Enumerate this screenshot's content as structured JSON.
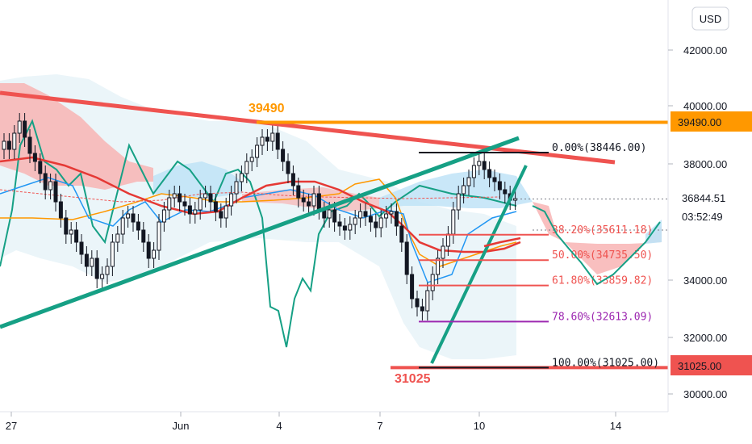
{
  "currency_badge": "USD",
  "colors": {
    "up": "#ffffff",
    "down": "#131722",
    "trend_red": "#ef5350",
    "trend_green": "#16a085",
    "resistance": "#ff9800",
    "fib_red": "#ef5350",
    "fib_purple": "#9c27b0",
    "cloud_red": "#f8b4b4",
    "cloud_blue": "#bfe3f7",
    "shadow_cloud": "#e6f3f7"
  },
  "chart_data": {
    "type": "candlestick",
    "title": "",
    "y_axis": {
      "ticks": [
        "42000.00",
        "40000.00",
        "38000.00",
        "34000.00",
        "32000.00",
        "30000.00"
      ],
      "ylim": [
        29600,
        43200
      ]
    },
    "x_axis": {
      "ticks": [
        "27",
        "Jun",
        "4",
        "7",
        "10",
        "14"
      ]
    },
    "price_badges": {
      "resistance": "39490.00",
      "current": "36844.51",
      "countdown": "03:52:49",
      "support": "31025.00"
    },
    "annotations": {
      "high_label": "39490",
      "low_label": "31025"
    },
    "fibonacci": [
      {
        "level": "0.00%",
        "value": "38446.00",
        "price": 38446,
        "text": "0.00%(38446.00)",
        "color": "#131722"
      },
      {
        "level": "38.20%",
        "value": "35611.18",
        "price": 35611.18,
        "text": "38.20%(35611.18)",
        "color": "#ef5350"
      },
      {
        "level": "50.00%",
        "value": "34735.50",
        "price": 34735.5,
        "text": "50.00%(34735.50)",
        "color": "#ef5350"
      },
      {
        "level": "61.80%",
        "value": "33859.82",
        "price": 33859.82,
        "text": "61.80%(33859.82)",
        "color": "#ef5350"
      },
      {
        "level": "78.60%",
        "value": "32613.09",
        "price": 32613.09,
        "text": "78.60%(32613.09)",
        "color": "#9c27b0"
      },
      {
        "level": "100.00%",
        "value": "31025.00",
        "price": 31025,
        "text": "100.00%(31025.00)",
        "color": "#131722"
      }
    ],
    "resistance_price": 39490,
    "support_price": 31025,
    "current_price": 36844.51
  }
}
